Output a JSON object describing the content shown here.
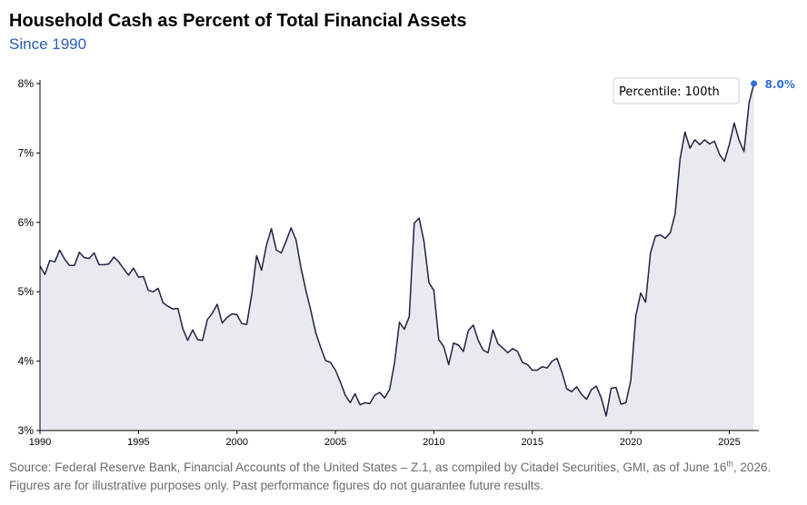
{
  "title": "Household Cash as Percent of Total Financial Assets",
  "subtitle": "Since 1990",
  "source": {
    "part1": "Source: Federal Reserve Bank, Financial Accounts of the United States – Z.1, as compiled by Citadel Securities, GMI, as of June 16",
    "sup": "th",
    "part2": ", 2026. Figures are for illustrative purposes only. Past performance figures do not guarantee future results."
  },
  "colors": {
    "line": "#1f2340",
    "fill": "#e9eaf0",
    "highlight": "#2f6fdc",
    "text": "#000000"
  },
  "chart_data": {
    "type": "area",
    "title": "Household Cash as Percent of Total Financial Assets",
    "subtitle": "Since 1990",
    "xlabel": "",
    "ylabel": "",
    "xlim": [
      1990,
      2026.5
    ],
    "ylim": [
      3,
      8
    ],
    "x_ticks": [
      1990,
      1995,
      2000,
      2005,
      2010,
      2015,
      2020,
      2025
    ],
    "y_ticks": [
      3,
      4,
      5,
      6,
      7,
      8
    ],
    "y_tick_labels": [
      "3%",
      "4%",
      "5%",
      "6%",
      "7%",
      "8%"
    ],
    "grid": false,
    "annotation": "Percentile: 100th",
    "last_value_label": "8.0%",
    "series": [
      {
        "x": [
          1990,
          1990.25,
          1990.5,
          1990.75,
          1991,
          1991.25,
          1991.5,
          1991.75,
          1992,
          1992.25,
          1992.5,
          1992.75,
          1993,
          1993.25,
          1993.5,
          1993.75,
          1994,
          1994.25,
          1994.5,
          1994.75,
          1995,
          1995.25,
          1995.5,
          1995.75,
          1996,
          1996.25,
          1996.5,
          1996.75,
          1997,
          1997.25,
          1997.5,
          1997.75,
          1998,
          1998.25,
          1998.5,
          1998.75,
          1999,
          1999.25,
          1999.5,
          1999.75,
          2000,
          2000.25,
          2000.5,
          2000.75,
          2001,
          2001.25,
          2001.5,
          2001.75,
          2002,
          2002.25,
          2002.5,
          2002.75,
          2003,
          2003.25,
          2003.5,
          2003.75,
          2004,
          2004.25,
          2004.5,
          2004.75,
          2005,
          2005.25,
          2005.5,
          2005.75,
          2006,
          2006.25,
          2006.5,
          2006.75,
          2007,
          2007.25,
          2007.5,
          2007.75,
          2008,
          2008.25,
          2008.5,
          2008.75,
          2009,
          2009.25,
          2009.5,
          2009.75,
          2010,
          2010.25,
          2010.5,
          2010.75,
          2011,
          2011.25,
          2011.5,
          2011.75,
          2012,
          2012.25,
          2012.5,
          2012.75,
          2013,
          2013.25,
          2013.5,
          2013.75,
          2014,
          2014.25,
          2014.5,
          2014.75,
          2015,
          2015.25,
          2015.5,
          2015.75,
          2016,
          2016.25,
          2016.5,
          2016.75,
          2017,
          2017.25,
          2017.5,
          2017.75,
          2018,
          2018.25,
          2018.5,
          2018.75,
          2019,
          2019.25,
          2019.5,
          2019.75,
          2020,
          2020.25,
          2020.5,
          2020.75,
          2021,
          2021.25,
          2021.5,
          2021.75,
          2022,
          2022.25,
          2022.5,
          2022.75,
          2023,
          2023.25,
          2023.5,
          2023.75,
          2024,
          2024.25,
          2024.5,
          2024.75,
          2025,
          2025.25,
          2025.5,
          2025.75,
          2026,
          2026.25
        ],
        "y": [
          5.37,
          5.25,
          5.45,
          5.43,
          5.6,
          5.47,
          5.38,
          5.38,
          5.57,
          5.49,
          5.48,
          5.56,
          5.39,
          5.39,
          5.4,
          5.5,
          5.43,
          5.33,
          5.24,
          5.34,
          5.21,
          5.22,
          5.02,
          5.0,
          5.05,
          4.84,
          4.79,
          4.75,
          4.76,
          4.47,
          4.3,
          4.45,
          4.31,
          4.3,
          4.6,
          4.69,
          4.82,
          4.55,
          4.63,
          4.68,
          4.67,
          4.54,
          4.53,
          4.96,
          5.52,
          5.31,
          5.67,
          5.91,
          5.6,
          5.56,
          5.73,
          5.92,
          5.75,
          5.35,
          5.02,
          4.73,
          4.41,
          4.2,
          4.01,
          3.98,
          3.87,
          3.7,
          3.51,
          3.4,
          3.53,
          3.37,
          3.4,
          3.39,
          3.51,
          3.55,
          3.47,
          3.59,
          3.97,
          4.56,
          4.46,
          4.64,
          5.99,
          6.06,
          5.72,
          5.13,
          5.02,
          4.31,
          4.21,
          3.95,
          4.26,
          4.23,
          4.14,
          4.44,
          4.52,
          4.3,
          4.16,
          4.12,
          4.45,
          4.25,
          4.19,
          4.12,
          4.18,
          4.14,
          3.98,
          3.95,
          3.87,
          3.87,
          3.92,
          3.9,
          4.0,
          4.04,
          3.84,
          3.6,
          3.56,
          3.63,
          3.52,
          3.45,
          3.59,
          3.64,
          3.47,
          3.21,
          3.61,
          3.62,
          3.38,
          3.4,
          3.72,
          4.65,
          4.98,
          4.85,
          5.56,
          5.8,
          5.82,
          5.77,
          5.85,
          6.12,
          6.91,
          7.3,
          7.07,
          7.19,
          7.12,
          7.19,
          7.13,
          7.17,
          6.98,
          6.88,
          7.12,
          7.43,
          7.18,
          7.02,
          7.72,
          8.0
        ]
      }
    ]
  }
}
